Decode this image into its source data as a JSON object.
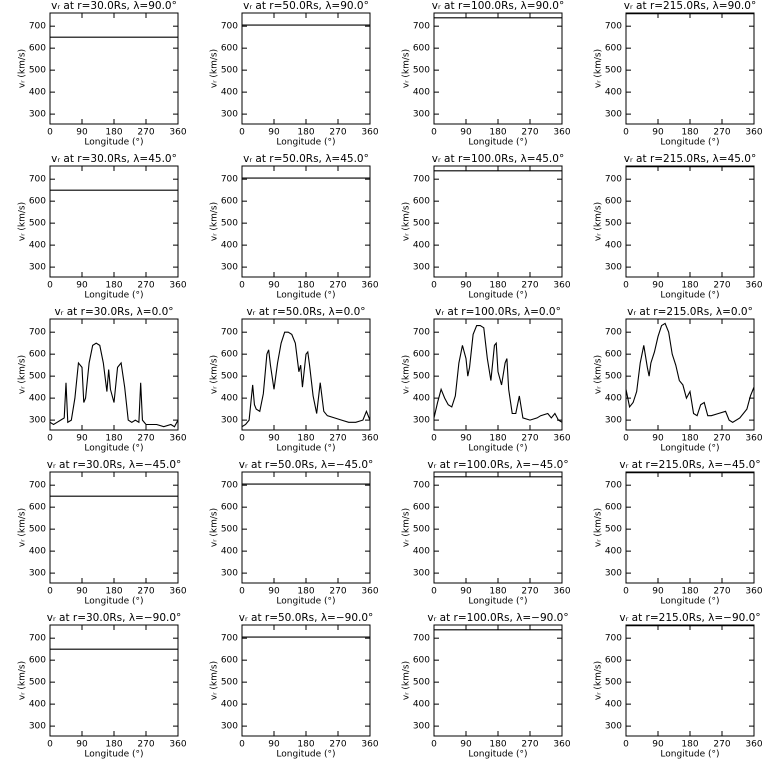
{
  "chart_data": [
    {
      "type": "line",
      "title": "vᵣ at r=30.0Rs, λ=90.0°",
      "xlabel": "Longitude (°)",
      "ylabel": "vᵣ (km/s)",
      "x": [
        0,
        360
      ],
      "values": [
        650,
        650
      ],
      "xlim": [
        0,
        360
      ],
      "ylim": [
        255,
        760
      ],
      "xticks": [
        0,
        90,
        180,
        270,
        360
      ],
      "yticks": [
        300,
        400,
        500,
        600,
        700
      ],
      "color": "#000000"
    },
    {
      "type": "line",
      "title": "vᵣ at r=50.0Rs, λ=90.0°",
      "xlabel": "Longitude (°)",
      "ylabel": "vᵣ (km/s)",
      "x": [
        0,
        360
      ],
      "values": [
        705,
        705
      ],
      "xlim": [
        0,
        360
      ],
      "ylim": [
        255,
        760
      ],
      "xticks": [
        0,
        90,
        180,
        270,
        360
      ],
      "yticks": [
        300,
        400,
        500,
        600,
        700
      ],
      "color": "#000000"
    },
    {
      "type": "line",
      "title": "vᵣ at r=100.0Rs, λ=90.0°",
      "xlabel": "Longitude (°)",
      "ylabel": "vᵣ (km/s)",
      "x": [
        0,
        360
      ],
      "values": [
        738,
        738
      ],
      "xlim": [
        0,
        360
      ],
      "ylim": [
        255,
        760
      ],
      "xticks": [
        0,
        90,
        180,
        270,
        360
      ],
      "yticks": [
        300,
        400,
        500,
        600,
        700
      ],
      "color": "#000000"
    },
    {
      "type": "line",
      "title": "vᵣ at r=215.0Rs, λ=90.0°",
      "xlabel": "Longitude (°)",
      "ylabel": "vᵣ (km/s)",
      "x": [
        0,
        360
      ],
      "values": [
        757,
        757
      ],
      "xlim": [
        0,
        360
      ],
      "ylim": [
        255,
        760
      ],
      "xticks": [
        0,
        90,
        180,
        270,
        360
      ],
      "yticks": [
        300,
        400,
        500,
        600,
        700
      ],
      "color": "#000000"
    },
    {
      "type": "line",
      "title": "vᵣ at r=30.0Rs, λ=45.0°",
      "xlabel": "Longitude (°)",
      "ylabel": "vᵣ (km/s)",
      "x": [
        0,
        360
      ],
      "values": [
        650,
        650
      ],
      "xlim": [
        0,
        360
      ],
      "ylim": [
        255,
        760
      ],
      "xticks": [
        0,
        90,
        180,
        270,
        360
      ],
      "yticks": [
        300,
        400,
        500,
        600,
        700
      ],
      "color": "#000000"
    },
    {
      "type": "line",
      "title": "vᵣ at r=50.0Rs, λ=45.0°",
      "xlabel": "Longitude (°)",
      "ylabel": "vᵣ (km/s)",
      "x": [
        0,
        360
      ],
      "values": [
        705,
        705
      ],
      "xlim": [
        0,
        360
      ],
      "ylim": [
        255,
        760
      ],
      "xticks": [
        0,
        90,
        180,
        270,
        360
      ],
      "yticks": [
        300,
        400,
        500,
        600,
        700
      ],
      "color": "#000000"
    },
    {
      "type": "line",
      "title": "vᵣ at r=100.0Rs, λ=45.0°",
      "xlabel": "Longitude (°)",
      "ylabel": "vᵣ (km/s)",
      "x": [
        0,
        360
      ],
      "values": [
        738,
        738
      ],
      "xlim": [
        0,
        360
      ],
      "ylim": [
        255,
        760
      ],
      "xticks": [
        0,
        90,
        180,
        270,
        360
      ],
      "yticks": [
        300,
        400,
        500,
        600,
        700
      ],
      "color": "#000000"
    },
    {
      "type": "line",
      "title": "vᵣ at r=215.0Rs, λ=45.0°",
      "xlabel": "Longitude (°)",
      "ylabel": "vᵣ (km/s)",
      "x": [
        0,
        360
      ],
      "values": [
        757,
        757
      ],
      "xlim": [
        0,
        360
      ],
      "ylim": [
        255,
        760
      ],
      "xticks": [
        0,
        90,
        180,
        270,
        360
      ],
      "yticks": [
        300,
        400,
        500,
        600,
        700
      ],
      "color": "#000000"
    },
    {
      "type": "line",
      "title": "vᵣ at r=30.0Rs, λ=0.0°",
      "xlabel": "Longitude (°)",
      "ylabel": "vᵣ (km/s)",
      "x": [
        0,
        10,
        20,
        30,
        40,
        45,
        50,
        60,
        70,
        80,
        90,
        95,
        100,
        110,
        120,
        130,
        140,
        150,
        160,
        165,
        170,
        180,
        190,
        200,
        210,
        220,
        230,
        240,
        250,
        255,
        260,
        270,
        280,
        300,
        320,
        340,
        350,
        360
      ],
      "values": [
        290,
        280,
        290,
        300,
        310,
        470,
        290,
        300,
        400,
        560,
        540,
        380,
        400,
        560,
        640,
        650,
        640,
        560,
        430,
        530,
        440,
        380,
        540,
        560,
        450,
        300,
        290,
        300,
        290,
        470,
        300,
        280,
        280,
        280,
        270,
        280,
        270,
        300
      ],
      "xlim": [
        0,
        360
      ],
      "ylim": [
        255,
        760
      ],
      "xticks": [
        0,
        90,
        180,
        270,
        360
      ],
      "yticks": [
        300,
        400,
        500,
        600,
        700
      ],
      "color": "#000000"
    },
    {
      "type": "line",
      "title": "vᵣ at r=50.0Rs, λ=0.0°",
      "xlabel": "Longitude (°)",
      "ylabel": "vᵣ (km/s)",
      "x": [
        0,
        10,
        20,
        30,
        35,
        40,
        50,
        60,
        70,
        75,
        80,
        90,
        100,
        110,
        120,
        130,
        140,
        150,
        160,
        165,
        170,
        180,
        185,
        190,
        200,
        210,
        220,
        230,
        240,
        260,
        280,
        300,
        320,
        340,
        350,
        360
      ],
      "values": [
        270,
        280,
        300,
        460,
        370,
        350,
        340,
        420,
        600,
        620,
        550,
        440,
        560,
        650,
        700,
        700,
        690,
        650,
        520,
        550,
        450,
        600,
        610,
        550,
        410,
        330,
        470,
        340,
        320,
        310,
        300,
        290,
        290,
        300,
        340,
        300
      ],
      "xlim": [
        0,
        360
      ],
      "ylim": [
        255,
        760
      ],
      "xticks": [
        0,
        90,
        180,
        270,
        360
      ],
      "yticks": [
        300,
        400,
        500,
        600,
        700
      ],
      "color": "#000000"
    },
    {
      "type": "line",
      "title": "vᵣ at r=100.0Rs, λ=0.0°",
      "xlabel": "Longitude (°)",
      "ylabel": "vᵣ (km/s)",
      "x": [
        0,
        10,
        20,
        30,
        40,
        50,
        60,
        70,
        80,
        90,
        95,
        100,
        110,
        120,
        130,
        140,
        150,
        160,
        170,
        175,
        180,
        190,
        200,
        205,
        210,
        220,
        230,
        240,
        250,
        270,
        290,
        300,
        320,
        330,
        340,
        350,
        360
      ],
      "values": [
        310,
        380,
        440,
        400,
        370,
        360,
        410,
        560,
        640,
        580,
        500,
        540,
        690,
        730,
        730,
        720,
        580,
        480,
        640,
        650,
        520,
        460,
        560,
        580,
        440,
        330,
        330,
        410,
        310,
        300,
        310,
        320,
        330,
        310,
        330,
        300,
        290
      ],
      "xlim": [
        0,
        360
      ],
      "ylim": [
        255,
        760
      ],
      "xticks": [
        0,
        90,
        180,
        270,
        360
      ],
      "yticks": [
        300,
        400,
        500,
        600,
        700
      ],
      "color": "#000000"
    },
    {
      "type": "line",
      "title": "vᵣ at r=215.0Rs, λ=0.0°",
      "xlabel": "Longitude (°)",
      "ylabel": "vᵣ (km/s)",
      "x": [
        0,
        10,
        20,
        30,
        40,
        50,
        60,
        65,
        70,
        80,
        90,
        100,
        110,
        120,
        130,
        140,
        150,
        160,
        170,
        180,
        190,
        200,
        210,
        220,
        230,
        240,
        260,
        280,
        290,
        300,
        320,
        340,
        350,
        360
      ],
      "values": [
        440,
        360,
        380,
        430,
        560,
        640,
        540,
        500,
        560,
        610,
        680,
        730,
        740,
        700,
        600,
        550,
        480,
        460,
        400,
        430,
        330,
        320,
        370,
        380,
        320,
        320,
        330,
        340,
        300,
        290,
        310,
        350,
        410,
        450
      ],
      "xlim": [
        0,
        360
      ],
      "ylim": [
        255,
        760
      ],
      "xticks": [
        0,
        90,
        180,
        270,
        360
      ],
      "yticks": [
        300,
        400,
        500,
        600,
        700
      ],
      "color": "#000000"
    },
    {
      "type": "line",
      "title": "vᵣ at r=30.0Rs, λ=−45.0°",
      "xlabel": "Longitude (°)",
      "ylabel": "vᵣ (km/s)",
      "x": [
        0,
        360
      ],
      "values": [
        650,
        650
      ],
      "xlim": [
        0,
        360
      ],
      "ylim": [
        255,
        760
      ],
      "xticks": [
        0,
        90,
        180,
        270,
        360
      ],
      "yticks": [
        300,
        400,
        500,
        600,
        700
      ],
      "color": "#000000"
    },
    {
      "type": "line",
      "title": "vᵣ at r=50.0Rs, λ=−45.0°",
      "xlabel": "Longitude (°)",
      "ylabel": "vᵣ (km/s)",
      "x": [
        0,
        360
      ],
      "values": [
        705,
        705
      ],
      "xlim": [
        0,
        360
      ],
      "ylim": [
        255,
        760
      ],
      "xticks": [
        0,
        90,
        180,
        270,
        360
      ],
      "yticks": [
        300,
        400,
        500,
        600,
        700
      ],
      "color": "#000000"
    },
    {
      "type": "line",
      "title": "vᵣ at r=100.0Rs, λ=−45.0°",
      "xlabel": "Longitude (°)",
      "ylabel": "vᵣ (km/s)",
      "x": [
        0,
        360
      ],
      "values": [
        738,
        738
      ],
      "xlim": [
        0,
        360
      ],
      "ylim": [
        255,
        760
      ],
      "xticks": [
        0,
        90,
        180,
        270,
        360
      ],
      "yticks": [
        300,
        400,
        500,
        600,
        700
      ],
      "color": "#000000"
    },
    {
      "type": "line",
      "title": "vᵣ at r=215.0Rs, λ=−45.0°",
      "xlabel": "Longitude (°)",
      "ylabel": "vᵣ (km/s)",
      "x": [
        0,
        360
      ],
      "values": [
        757,
        757
      ],
      "xlim": [
        0,
        360
      ],
      "ylim": [
        255,
        760
      ],
      "xticks": [
        0,
        90,
        180,
        270,
        360
      ],
      "yticks": [
        300,
        400,
        500,
        600,
        700
      ],
      "color": "#000000"
    },
    {
      "type": "line",
      "title": "vᵣ at r=30.0Rs, λ=−90.0°",
      "xlabel": "Longitude (°)",
      "ylabel": "vᵣ (km/s)",
      "x": [
        0,
        360
      ],
      "values": [
        650,
        650
      ],
      "xlim": [
        0,
        360
      ],
      "ylim": [
        255,
        760
      ],
      "xticks": [
        0,
        90,
        180,
        270,
        360
      ],
      "yticks": [
        300,
        400,
        500,
        600,
        700
      ],
      "color": "#000000"
    },
    {
      "type": "line",
      "title": "vᵣ at r=50.0Rs, λ=−90.0°",
      "xlabel": "Longitude (°)",
      "ylabel": "vᵣ (km/s)",
      "x": [
        0,
        360
      ],
      "values": [
        705,
        705
      ],
      "xlim": [
        0,
        360
      ],
      "ylim": [
        255,
        760
      ],
      "xticks": [
        0,
        90,
        180,
        270,
        360
      ],
      "yticks": [
        300,
        400,
        500,
        600,
        700
      ],
      "color": "#000000"
    },
    {
      "type": "line",
      "title": "vᵣ at r=100.0Rs, λ=−90.0°",
      "xlabel": "Longitude (°)",
      "ylabel": "vᵣ (km/s)",
      "x": [
        0,
        360
      ],
      "values": [
        738,
        738
      ],
      "xlim": [
        0,
        360
      ],
      "ylim": [
        255,
        760
      ],
      "xticks": [
        0,
        90,
        180,
        270,
        360
      ],
      "yticks": [
        300,
        400,
        500,
        600,
        700
      ],
      "color": "#000000"
    },
    {
      "type": "line",
      "title": "vᵣ at r=215.0Rs, λ=−90.0°",
      "xlabel": "Longitude (°)",
      "ylabel": "vᵣ (km/s)",
      "x": [
        0,
        360
      ],
      "values": [
        757,
        757
      ],
      "xlim": [
        0,
        360
      ],
      "ylim": [
        255,
        760
      ],
      "xticks": [
        0,
        90,
        180,
        270,
        360
      ],
      "yticks": [
        300,
        400,
        500,
        600,
        700
      ],
      "color": "#000000"
    }
  ]
}
